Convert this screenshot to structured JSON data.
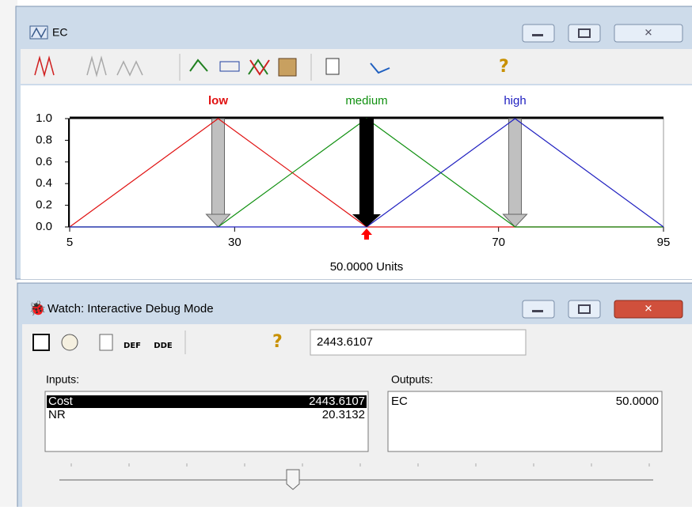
{
  "ec_window": {
    "title": "EC",
    "chart": {
      "type": "line",
      "series": [
        {
          "name": "low",
          "color": "#e01010",
          "x": [
            5,
            27.5,
            50,
            95
          ],
          "values": [
            0,
            1,
            0,
            0
          ]
        },
        {
          "name": "medium",
          "color": "#109010",
          "x": [
            5,
            27.5,
            50,
            72.5,
            95
          ],
          "values": [
            0,
            0,
            1,
            0,
            0
          ]
        },
        {
          "name": "high",
          "color": "#2020c0",
          "x": [
            5,
            50,
            72.5,
            95
          ],
          "values": [
            0,
            0,
            1,
            0
          ]
        }
      ],
      "xlim": [
        5,
        95
      ],
      "ylim": [
        0,
        1
      ],
      "xticks": [
        5,
        30,
        70,
        95
      ],
      "yticks": [
        {
          "value": 0,
          "label": "0.0"
        },
        {
          "value": 0.2,
          "label": "0.2"
        },
        {
          "value": 0.4,
          "label": "0.4"
        },
        {
          "value": 0.6,
          "label": "0.6"
        },
        {
          "value": 0.8,
          "label": "0.8"
        },
        {
          "value": 1,
          "label": "1.0"
        }
      ],
      "crisp_value": 50,
      "value_label": "50.0000 Units"
    }
  },
  "watch_window": {
    "title": "Watch: Interactive Debug Mode",
    "input_box": "2443.6107",
    "inputs": {
      "label": "Inputs:",
      "rows": [
        [
          "Cost",
          "2443.6107"
        ],
        [
          "NR",
          "20.3132"
        ]
      ]
    },
    "outputs": {
      "label": "Outputs:",
      "rows": [
        [
          "EC",
          "50.0000"
        ]
      ]
    }
  }
}
